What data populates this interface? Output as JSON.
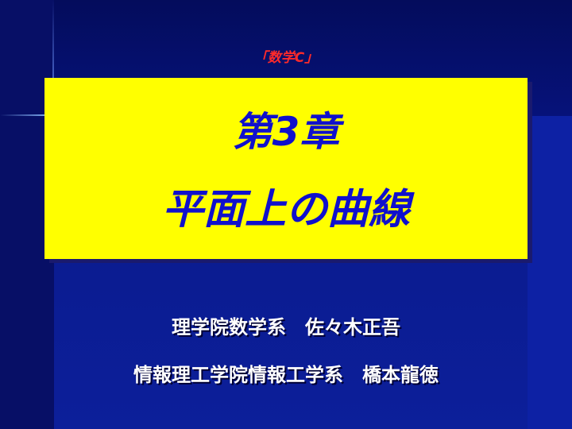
{
  "slide": {
    "subject": "「数学C」",
    "title": {
      "line1": "第3章",
      "line2": "平面上の曲線"
    },
    "authors": [
      "理学院数学系　佐々木正吾",
      "情報理工学院情報工学系　橋本龍徳"
    ]
  },
  "colors": {
    "background": "#0a1a8c",
    "title_box": "#ffff00",
    "title_text": "#1010cc",
    "subject_text": "#ff2a2a",
    "author_text": "#ffffff"
  }
}
